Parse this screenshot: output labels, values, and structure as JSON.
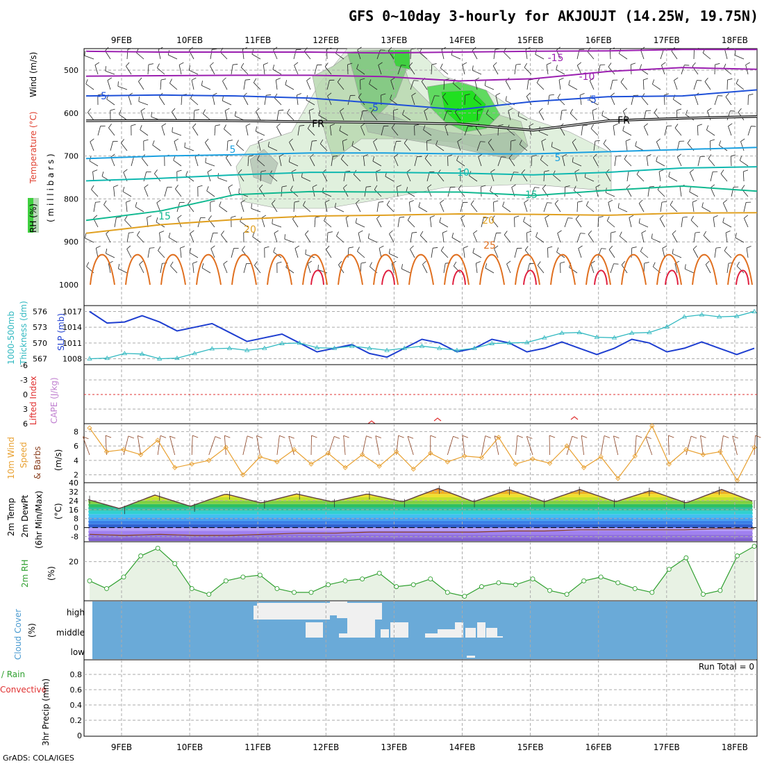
{
  "title": "GFS 0~10day 3-hourly for AKJOUJT (14.25W, 19.75N)",
  "credit": "GrADS: COLA/IGES",
  "dates": [
    "9FEB",
    "10FEB",
    "11FEB",
    "12FEB",
    "13FEB",
    "14FEB",
    "15FEB",
    "16FEB",
    "17FEB",
    "18FEB"
  ],
  "colors": {
    "temp_minus15": "#9b1fb0",
    "temp_minus10": "#9b1fb0",
    "temp_minus5": "#1e50d8",
    "freezing": "#000000",
    "temp_5": "#1aa0e0",
    "temp_10": "#10b8b0",
    "temp_15": "#10b890",
    "temp_20": "#e0a020",
    "temp_25": "#e07020",
    "temp_30": "#e02040",
    "slp": "#1e3ed0",
    "thickness": "#30b8c0",
    "wind10": "#e8a030",
    "dewpoint": "#8a4020",
    "rh2m": "#30a030",
    "cloud_bg": "#6aaad8",
    "cloud_fill": "#f0f0f0",
    "lifted": "#e03030"
  },
  "panels": {
    "profile": {
      "ylabel_wind": "Wind (m/s)",
      "ylabel_temp": "Temperature (°C)",
      "ylabel_rh": "RH (%)",
      "ylabel_pressure": "( m i l l i b a r s )",
      "levels": [
        "500",
        "600",
        "700",
        "800",
        "900",
        "1000"
      ],
      "contour_labels": [
        "-15",
        "-10",
        "-5",
        "-5",
        "-5",
        "FR",
        "FR",
        "5",
        "5",
        "10",
        "15",
        "15",
        "20",
        "20",
        "25",
        "10",
        "10",
        "50",
        "50",
        "50",
        "70"
      ]
    },
    "thickness": {
      "ylabel1": "1000-500mb",
      "ylabel2": "Thickness (dm)",
      "ylabel3": "SLP (mb)",
      "left_ticks": [
        "576",
        "573",
        "570",
        "567"
      ],
      "right_ticks": [
        "1017",
        "1014",
        "1011",
        "1008"
      ]
    },
    "stability": {
      "ylabel1": "Lifted Index",
      "ylabel2": "CAPE (J/kg)",
      "ticks": [
        "-6",
        "-3",
        "0",
        "3",
        "6"
      ]
    },
    "wind10": {
      "ylabel1": "10m Wind",
      "ylabel2": "Speed",
      "ylabel3": "& Barbs",
      "ylabel4": "(m/s)",
      "ticks": [
        "8",
        "6",
        "4",
        "2"
      ]
    },
    "temp2m": {
      "ylabel1": "2m Temp",
      "ylabel2": "2m DewPt",
      "ylabel3": "(6hr Min/Max)",
      "ylabel4": "(°C)",
      "ticks": [
        "40",
        "32",
        "24",
        "16",
        "8",
        "0",
        "-8"
      ]
    },
    "rh2m": {
      "ylabel1": "2m RH",
      "ylabel2": "(%)",
      "ticks": [
        "20"
      ]
    },
    "cloud": {
      "ylabel1": "Cloud Cover",
      "ylabel2": "(%)",
      "levels": [
        "high",
        "middle",
        "low"
      ]
    },
    "precip": {
      "ylabel1": "Total / Rain",
      "ylabel2": "Convective",
      "ylabel3": "3hr Precip (mm)",
      "ticks": [
        "0.8",
        "0.6",
        "0.4",
        "0.2",
        "0"
      ],
      "run_total": "Run Total = 0"
    }
  },
  "chart_data": [
    {
      "type": "line",
      "name": "profile",
      "x_labels": [
        "9FEB",
        "10FEB",
        "11FEB",
        "12FEB",
        "13FEB",
        "14FEB",
        "15FEB",
        "16FEB",
        "17FEB",
        "18FEB"
      ],
      "ylim": [
        1000,
        450
      ],
      "ylabel": "millibars",
      "isotherm_labels": [
        "-15",
        "-10",
        "-5",
        "FR",
        "5",
        "10",
        "15",
        "20",
        "25"
      ],
      "freezing_level_mb": [
        618,
        617,
        618,
        620,
        622,
        625,
        640,
        618,
        612,
        608
      ],
      "series": [
        {
          "name": "-15",
          "values": [
            456,
            458,
            458,
            458,
            460,
            458,
            456,
            455,
            452,
            452
          ]
        },
        {
          "name": "-10",
          "values": [
            514,
            513,
            512,
            512,
            515,
            525,
            520,
            503,
            494,
            498
          ]
        },
        {
          "name": "-5",
          "values": [
            560,
            558,
            560,
            565,
            578,
            592,
            573,
            562,
            560,
            546
          ]
        },
        {
          "name": "5",
          "values": [
            706,
            700,
            697,
            693,
            693,
            695,
            695,
            690,
            685,
            680
          ]
        },
        {
          "name": "10",
          "values": [
            758,
            752,
            744,
            738,
            738,
            740,
            744,
            738,
            728,
            725
          ]
        },
        {
          "name": "15",
          "values": [
            850,
            828,
            790,
            783,
            784,
            784,
            792,
            780,
            770,
            782
          ]
        },
        {
          "name": "20",
          "values": [
            880,
            860,
            848,
            840,
            838,
            835,
            836,
            838,
            833,
            832
          ]
        }
      ]
    },
    {
      "type": "line",
      "name": "thickness_slp",
      "x_labels": [
        "9FEB",
        "10FEB",
        "11FEB",
        "12FEB",
        "13FEB",
        "14FEB",
        "15FEB",
        "16FEB",
        "17FEB",
        "18FEB"
      ],
      "series": [
        {
          "name": "SLP (mb)",
          "values": [
            1017,
            1015,
            1015,
            1014,
            1013,
            1012,
            1011,
            1010,
            1009,
            1010,
            1011,
            1010,
            1011,
            1010,
            1010,
            1010,
            1011,
            1010,
            1010,
            1010
          ]
        },
        {
          "name": "1000-500mb Thickness (dm)",
          "values": [
            567,
            568,
            567,
            568,
            569,
            569,
            570,
            569,
            569,
            569,
            569,
            569,
            570,
            571,
            572,
            571,
            572,
            575,
            575,
            576
          ]
        }
      ],
      "ylim_left": [
        566,
        577
      ],
      "ylim_right": [
        1007,
        1018
      ]
    },
    {
      "type": "line",
      "name": "wind10",
      "x_labels": [
        "9FEB",
        "10FEB",
        "11FEB",
        "12FEB",
        "13FEB",
        "14FEB",
        "15FEB",
        "16FEB",
        "17FEB",
        "18FEB"
      ],
      "ylim": [
        1,
        9
      ],
      "series": [
        {
          "name": "10m Wind Speed",
          "values": [
            8.5,
            5.2,
            5.5,
            4.8,
            6.8,
            3.0,
            3.5,
            4.0,
            5.8,
            2.0,
            4.5,
            3.8,
            5.5,
            3.5,
            5.0,
            3.0,
            4.8,
            3.2,
            5.2,
            2.8,
            5.0,
            3.8,
            4.6,
            4.4,
            7.2,
            3.5,
            4.2,
            3.6,
            6.0,
            3.0,
            4.5,
            1.5,
            4.6,
            8.8,
            3.5,
            5.5,
            4.8,
            5.2,
            1.2,
            5.8
          ]
        }
      ]
    },
    {
      "type": "area",
      "name": "temp2m",
      "x_labels": [
        "9FEB",
        "10FEB",
        "11FEB",
        "12FEB",
        "13FEB",
        "14FEB",
        "15FEB",
        "16FEB",
        "17FEB",
        "18FEB"
      ],
      "ylim": [
        -12,
        40
      ],
      "series": [
        {
          "name": "2m Temp",
          "values": [
            26,
            17,
            29,
            19,
            30,
            22,
            30,
            23,
            30,
            23,
            35,
            23,
            34,
            23,
            34,
            23,
            33,
            22,
            34,
            22
          ]
        },
        {
          "name": "2m DewPt",
          "values": [
            -6,
            -7,
            -6,
            -7,
            -7,
            -6,
            -5,
            -5,
            -4,
            -4,
            -4,
            -4,
            -3,
            -3,
            -2,
            -2,
            -2,
            -2,
            -1,
            -1
          ]
        }
      ]
    },
    {
      "type": "area",
      "name": "rh2m",
      "x_labels": [
        "9FEB",
        "10FEB",
        "11FEB",
        "12FEB",
        "13FEB",
        "14FEB",
        "15FEB",
        "16FEB",
        "17FEB",
        "18FEB"
      ],
      "ylim": [
        0,
        30
      ],
      "series": [
        {
          "name": "2m RH",
          "values": [
            10,
            6,
            12,
            23,
            27,
            19,
            6,
            3,
            10,
            12,
            13,
            6,
            4,
            4,
            8,
            10,
            11,
            14,
            7,
            8,
            11,
            4,
            2,
            7,
            9,
            8,
            11,
            5,
            3,
            10,
            12,
            9,
            6,
            4,
            16,
            22,
            3,
            5,
            23,
            28
          ]
        }
      ]
    },
    {
      "type": "bar",
      "name": "cloud_cover",
      "levels": [
        "high",
        "middle",
        "low"
      ]
    },
    {
      "type": "bar",
      "name": "precip",
      "ylim": [
        0,
        1
      ],
      "values": [],
      "annotation": "Run Total = 0"
    }
  ]
}
